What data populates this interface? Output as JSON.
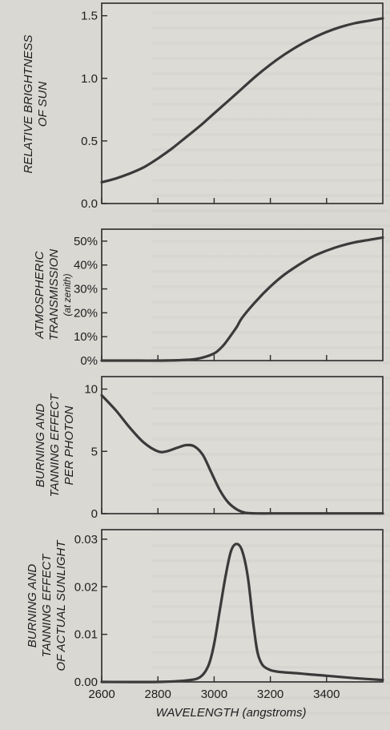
{
  "chart_data": [
    {
      "type": "line",
      "ylabel": "RELATIVE BRIGHTNESS OF SUN",
      "y_subtitle": "",
      "ylim": [
        0,
        1.6
      ],
      "xlim": [
        2600,
        3600
      ],
      "yticks": [
        0.0,
        0.5,
        1.0,
        1.5
      ],
      "ytick_labels": [
        "0.0",
        "0.5",
        "1.0",
        "1.5"
      ],
      "series": [
        {
          "x": [
            2600,
            2650,
            2700,
            2750,
            2800,
            2850,
            2900,
            2950,
            3000,
            3050,
            3100,
            3150,
            3200,
            3250,
            3300,
            3350,
            3400,
            3450,
            3500,
            3550,
            3600
          ],
          "y": [
            0.17,
            0.2,
            0.24,
            0.29,
            0.36,
            0.44,
            0.53,
            0.62,
            0.72,
            0.82,
            0.92,
            1.02,
            1.11,
            1.19,
            1.26,
            1.32,
            1.37,
            1.41,
            1.44,
            1.46,
            1.48
          ]
        }
      ]
    },
    {
      "type": "line",
      "ylabel": "ATMOSPHERIC TRANSMISSION",
      "y_subtitle": "(at zenith)",
      "ylim": [
        0,
        55
      ],
      "xlim": [
        2600,
        3600
      ],
      "yticks": [
        0,
        10,
        20,
        30,
        40,
        50
      ],
      "ytick_labels": [
        "0%",
        "10%",
        "20%",
        "30%",
        "40%",
        "50%"
      ],
      "series": [
        {
          "x": [
            2600,
            2700,
            2800,
            2900,
            2950,
            3000,
            3030,
            3050,
            3080,
            3100,
            3150,
            3200,
            3250,
            3300,
            3350,
            3400,
            3450,
            3500,
            3550,
            3600
          ],
          "y": [
            0,
            0,
            0,
            0.3,
            1,
            3,
            6,
            9,
            14,
            18,
            25,
            31,
            36,
            40,
            43.5,
            46,
            48,
            49.5,
            50.5,
            51.5
          ]
        }
      ]
    },
    {
      "type": "line",
      "ylabel": "BURNING AND TANNING EFFECT PER PHOTON",
      "y_subtitle": "",
      "ylim": [
        0,
        11
      ],
      "xlim": [
        2600,
        3600
      ],
      "yticks": [
        0,
        5,
        10
      ],
      "ytick_labels": [
        "0",
        "5",
        "10"
      ],
      "series": [
        {
          "x": [
            2600,
            2650,
            2700,
            2750,
            2800,
            2830,
            2870,
            2900,
            2930,
            2960,
            2990,
            3020,
            3050,
            3080,
            3110,
            3150,
            3200,
            3300,
            3400,
            3500,
            3600
          ],
          "y": [
            9.5,
            8.3,
            6.9,
            5.7,
            5.0,
            5.0,
            5.3,
            5.5,
            5.4,
            4.7,
            3.3,
            1.9,
            0.9,
            0.35,
            0.08,
            0.02,
            0.02,
            0.02,
            0.02,
            0.02,
            0.02
          ]
        }
      ]
    },
    {
      "type": "line",
      "ylabel": "BURNING AND TANNING EFFECT OF ACTUAL SUNLIGHT",
      "y_subtitle": "",
      "ylim": [
        0,
        0.032
      ],
      "xlim": [
        2600,
        3600
      ],
      "xticks": [
        2600,
        2800,
        3000,
        3200,
        3400
      ],
      "xtick_labels": [
        "2600",
        "2800",
        "3000",
        "3200",
        "3400"
      ],
      "yticks": [
        0.0,
        0.01,
        0.02,
        0.03
      ],
      "ytick_labels": [
        "0.00",
        "0.01",
        "0.02",
        "0.03"
      ],
      "series": [
        {
          "x": [
            2600,
            2800,
            2900,
            2950,
            2980,
            3000,
            3020,
            3040,
            3060,
            3080,
            3100,
            3120,
            3140,
            3160,
            3200,
            3300,
            3400,
            3500,
            3600
          ],
          "y": [
            0,
            0,
            0.0003,
            0.001,
            0.0035,
            0.008,
            0.015,
            0.022,
            0.0275,
            0.029,
            0.0275,
            0.022,
            0.012,
            0.005,
            0.0025,
            0.0018,
            0.0013,
            0.0008,
            0.0004
          ]
        }
      ]
    }
  ],
  "xlabel": "WAVELENGTH (angstroms)",
  "colors": {
    "curve": "#3a3a3a",
    "frame": "#2a2a2a",
    "text": "#1e1e1e"
  }
}
